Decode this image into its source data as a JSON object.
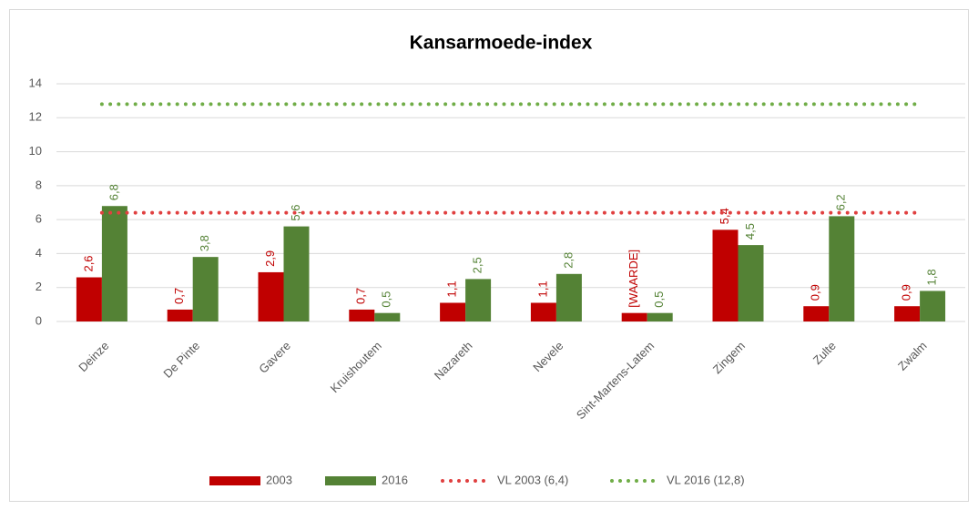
{
  "chart_data": {
    "type": "bar",
    "title": "Kansarmoede-index",
    "categories": [
      "Deinze",
      "De Pinte",
      "Gavere",
      "Kruishoutem",
      "Nazareth",
      "Nevele",
      "Sint-Martens-Latem",
      "Zingem",
      "Zulte",
      "Zwalm"
    ],
    "series": [
      {
        "name": "2003",
        "color": "#c00000",
        "values": [
          2.6,
          0.7,
          2.9,
          0.7,
          1.1,
          1.1,
          0.5,
          5.4,
          0.9,
          0.9
        ],
        "value_labels": [
          "2,6",
          "0,7",
          "2,9",
          "0,7",
          "1,1",
          "1,1",
          "[WAARDE]",
          "5,4",
          "0,9",
          "0,9"
        ]
      },
      {
        "name": "2016",
        "color": "#548235",
        "values": [
          6.8,
          3.8,
          5.6,
          0.5,
          2.5,
          2.8,
          0.5,
          4.5,
          6.2,
          1.8
        ],
        "value_labels": [
          "6,8",
          "3,8",
          "5,6",
          "0,5",
          "2,5",
          "2,8",
          "0,5",
          "4,5",
          "6,2",
          "1,8"
        ]
      }
    ],
    "reference_lines": [
      {
        "name": "VL 2003 (6,4)",
        "color": "#e04040",
        "value": 6.4
      },
      {
        "name": "VL 2016 (12,8)",
        "color": "#70ad47",
        "value": 12.8
      }
    ],
    "ylim": [
      0,
      14
    ],
    "yticks": [
      0,
      2,
      4,
      6,
      8,
      10,
      12,
      14
    ],
    "grid": true,
    "legend": "bottom"
  }
}
